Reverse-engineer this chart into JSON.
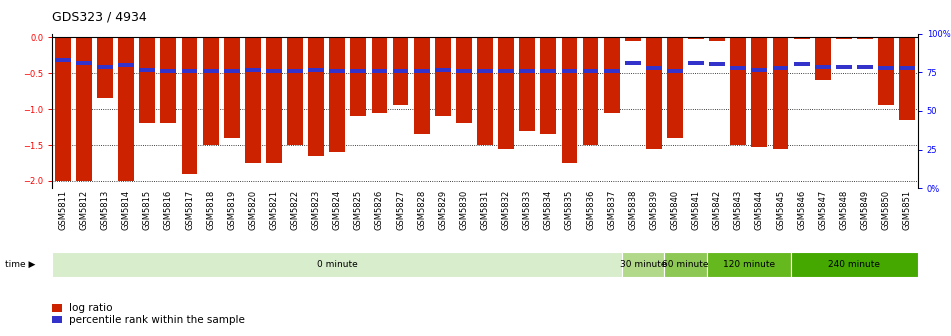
{
  "title": "GDS323 / 4934",
  "categories": [
    "GSM5811",
    "GSM5812",
    "GSM5813",
    "GSM5814",
    "GSM5815",
    "GSM5816",
    "GSM5817",
    "GSM5818",
    "GSM5819",
    "GSM5820",
    "GSM5821",
    "GSM5822",
    "GSM5823",
    "GSM5824",
    "GSM5825",
    "GSM5826",
    "GSM5827",
    "GSM5828",
    "GSM5829",
    "GSM5830",
    "GSM5831",
    "GSM5832",
    "GSM5833",
    "GSM5834",
    "GSM5835",
    "GSM5836",
    "GSM5837",
    "GSM5838",
    "GSM5839",
    "GSM5840",
    "GSM5841",
    "GSM5842",
    "GSM5843",
    "GSM5844",
    "GSM5845",
    "GSM5846",
    "GSM5847",
    "GSM5848",
    "GSM5849",
    "GSM5850",
    "GSM5851"
  ],
  "log_ratio": [
    -2.0,
    -2.0,
    -0.85,
    -2.0,
    -1.2,
    -1.2,
    -1.9,
    -1.5,
    -1.4,
    -1.75,
    -1.75,
    -1.5,
    -1.65,
    -1.6,
    -1.1,
    -1.05,
    -0.95,
    -1.35,
    -1.1,
    -1.2,
    -1.5,
    -1.55,
    -1.3,
    -1.35,
    -1.75,
    -1.5,
    -1.05,
    -0.05,
    -1.55,
    -1.4,
    -0.03,
    -0.05,
    -1.5,
    -1.53,
    -1.55,
    -0.03,
    -0.6,
    -0.03,
    -0.03,
    -0.95,
    -1.15
  ],
  "percentile_rank_normalized": [
    0.15,
    0.17,
    0.19,
    0.18,
    0.21,
    0.22,
    0.22,
    0.22,
    0.22,
    0.21,
    0.22,
    0.22,
    0.21,
    0.22,
    0.22,
    0.22,
    0.22,
    0.22,
    0.21,
    0.22,
    0.22,
    0.22,
    0.22,
    0.22,
    0.22,
    0.22,
    0.22,
    0.17,
    0.2,
    0.22,
    0.17,
    0.175,
    0.2,
    0.21,
    0.2,
    0.175,
    0.19,
    0.19,
    0.19,
    0.2,
    0.2
  ],
  "time_groups": [
    {
      "label": "0 minute",
      "start": 0,
      "end": 27,
      "color": "#d8edcc"
    },
    {
      "label": "30 minute",
      "start": 27,
      "end": 29,
      "color": "#b2d98a"
    },
    {
      "label": "60 minute",
      "start": 29,
      "end": 31,
      "color": "#8dc855"
    },
    {
      "label": "120 minute",
      "start": 31,
      "end": 35,
      "color": "#66b81f"
    },
    {
      "label": "240 minute",
      "start": 35,
      "end": 41,
      "color": "#44a800"
    }
  ],
  "ylim_left": [
    -2.1,
    0.05
  ],
  "ylim_right": [
    0,
    100
  ],
  "yticks_left": [
    0,
    -0.5,
    -1.0,
    -1.5,
    -2.0
  ],
  "yticks_right": [
    0,
    25,
    50,
    75,
    100
  ],
  "ytick_labels_right": [
    "0%",
    "25",
    "50",
    "75",
    "100%"
  ],
  "bar_color": "#cc2200",
  "pct_color": "#3333cc",
  "bg_color": "#ffffff",
  "title_fontsize": 9,
  "tick_fontsize": 6,
  "legend_fontsize": 7.5
}
